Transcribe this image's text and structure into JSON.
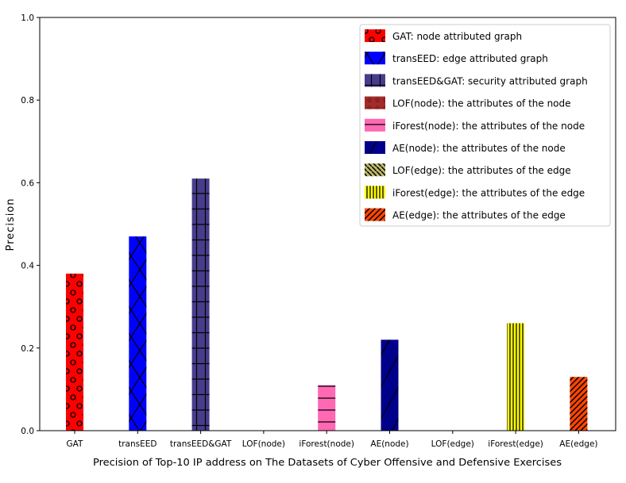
{
  "chart_data": {
    "type": "bar",
    "title": "",
    "xlabel": "Precision of Top-10 IP address on The Datasets of Cyber Offensive and Defensive Exercises",
    "ylabel": "Precision",
    "ylim": [
      0,
      1.0
    ],
    "yticks": [
      "0.0",
      "0.2",
      "0.4",
      "0.6",
      "0.8",
      "1.0"
    ],
    "grid": false,
    "legend_placement": "top-right",
    "categories": [
      "GAT",
      "transEED",
      "transEED&GAT",
      "LOF(node)",
      "iForest(node)",
      "AE(node)",
      "LOF(edge)",
      "iForest(edge)",
      "AE(edge)"
    ],
    "values": [
      0.38,
      0.47,
      0.61,
      0.0,
      0.11,
      0.22,
      0.0,
      0.26,
      0.13
    ],
    "colors": [
      "#ff0000",
      "#0000ff",
      "#483d8b",
      "#a52a2a",
      "#ff69b4",
      "#00008b",
      "#bdb76b",
      "#ffff00",
      "#ff4500"
    ],
    "hatches": [
      "circles",
      "crosshatch-x",
      "grid-plus",
      "stars",
      "horizontal",
      "diagonal-forward",
      "diagonal-back",
      "vertical",
      "diagonal-forward-dense"
    ],
    "legend": [
      "GAT: node attributed graph",
      "transEED: edge attributed graph",
      "transEED&GAT: security attributed graph",
      "LOF(node): the attributes of the node",
      "iForest(node): the attributes of the node",
      "AE(node): the attributes of the node",
      "LOF(edge): the attributes of the edge",
      "iForest(edge): the attributes of the edge",
      "AE(edge): the attributes of the edge"
    ]
  }
}
